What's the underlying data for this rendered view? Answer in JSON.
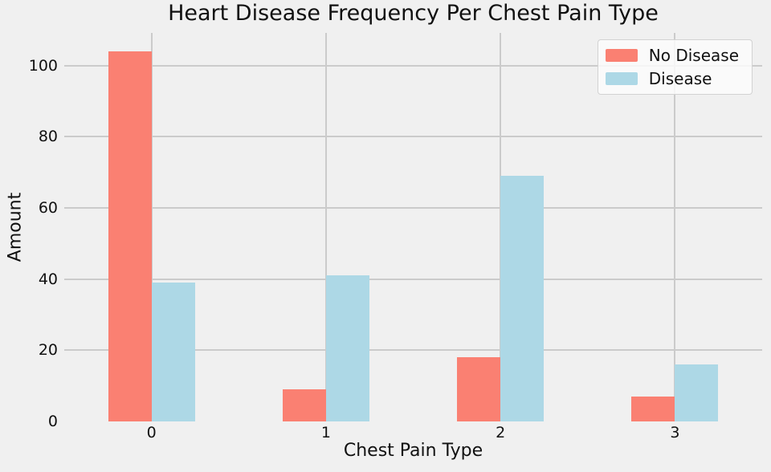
{
  "chart_data": {
    "type": "bar",
    "title": "Heart Disease Frequency Per Chest Pain Type",
    "xlabel": "Chest Pain Type",
    "ylabel": "Amount",
    "categories": [
      "0",
      "1",
      "2",
      "3"
    ],
    "series": [
      {
        "name": "No Disease",
        "color": "#fa8072",
        "values": [
          104,
          9,
          18,
          7
        ]
      },
      {
        "name": "Disease",
        "color": "#add8e6",
        "values": [
          39,
          41,
          69,
          16
        ]
      }
    ],
    "yticks": [
      0,
      20,
      40,
      60,
      80,
      100
    ],
    "ylim": [
      0,
      109.2
    ],
    "grid": true,
    "grid_color": "#cbcbcb",
    "background_color": "#f0f0f0",
    "legend_position": "upper right",
    "legend_labels": [
      "No Disease",
      "Disease"
    ]
  }
}
